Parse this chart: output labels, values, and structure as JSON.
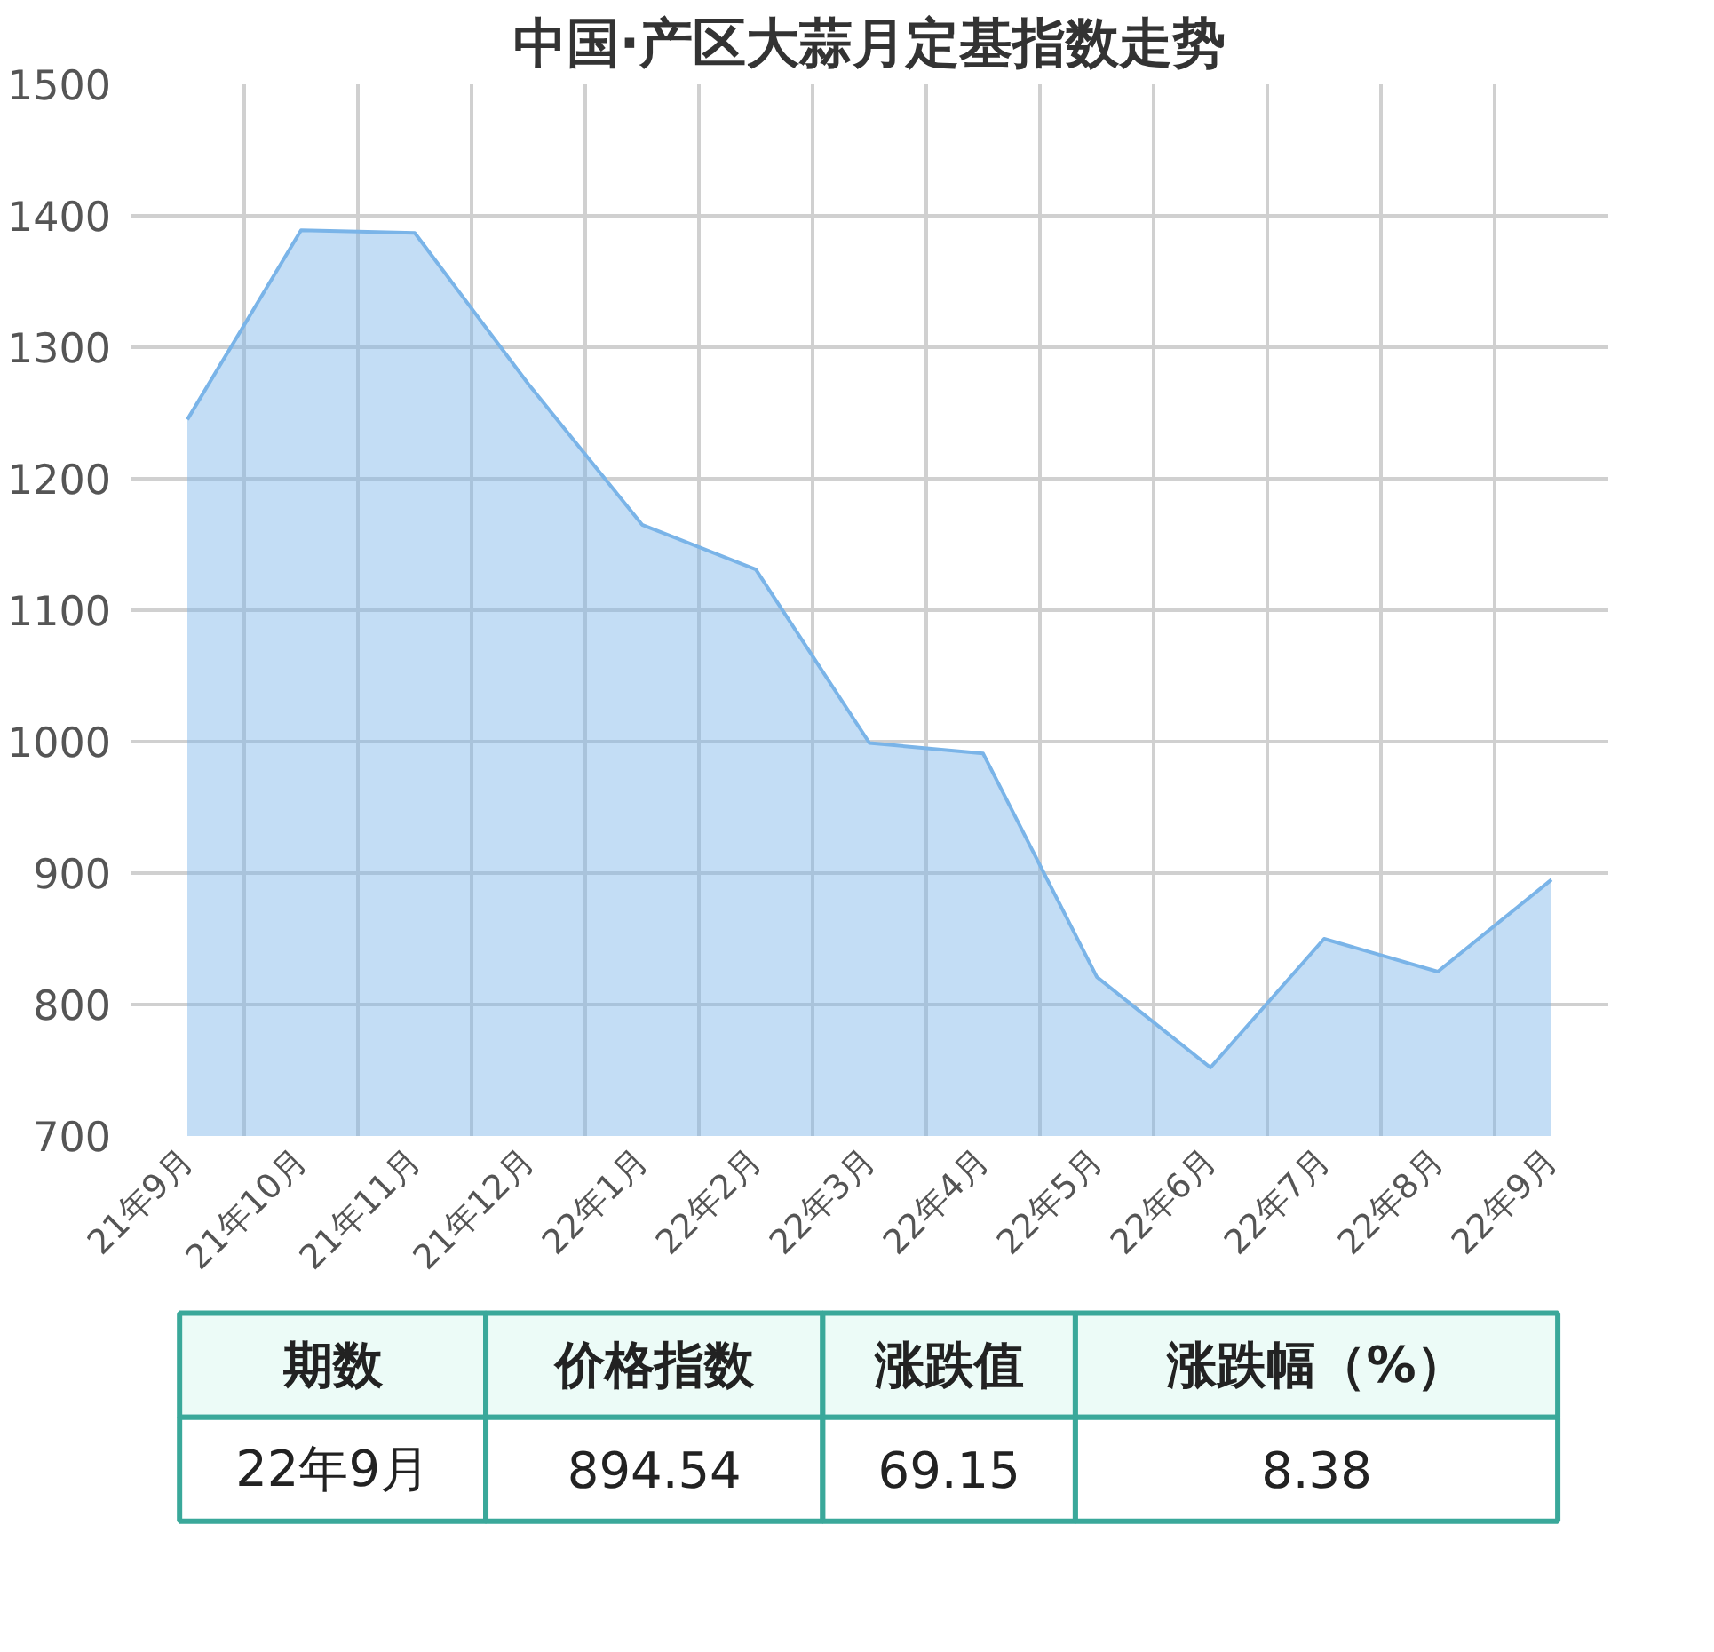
{
  "chart_data": {
    "type": "area",
    "title": "中国·产区大蒜月定基指数走势",
    "categories": [
      "21年9月",
      "21年10月",
      "21年11月",
      "21年12月",
      "22年1月",
      "22年2月",
      "22年3月",
      "22年4月",
      "22年5月",
      "22年6月",
      "22年7月",
      "22年8月",
      "22年9月"
    ],
    "series": [
      {
        "color": "#7ab4e8",
        "values": [
          1245,
          1389,
          1387,
          1272,
          1165,
          1131,
          999,
          991,
          821,
          752,
          850,
          825,
          895
        ]
      }
    ],
    "ylim": [
      700,
      1500
    ],
    "yticks": [
      700,
      800,
      900,
      1000,
      1100,
      1200,
      1300,
      1400,
      1500
    ],
    "grid": true,
    "annotations": [
      "期数",
      "价格指数",
      "涨跌值",
      "涨跌幅（%）",
      "22年9月",
      "894.54",
      "69.15",
      "8.38"
    ]
  }
}
